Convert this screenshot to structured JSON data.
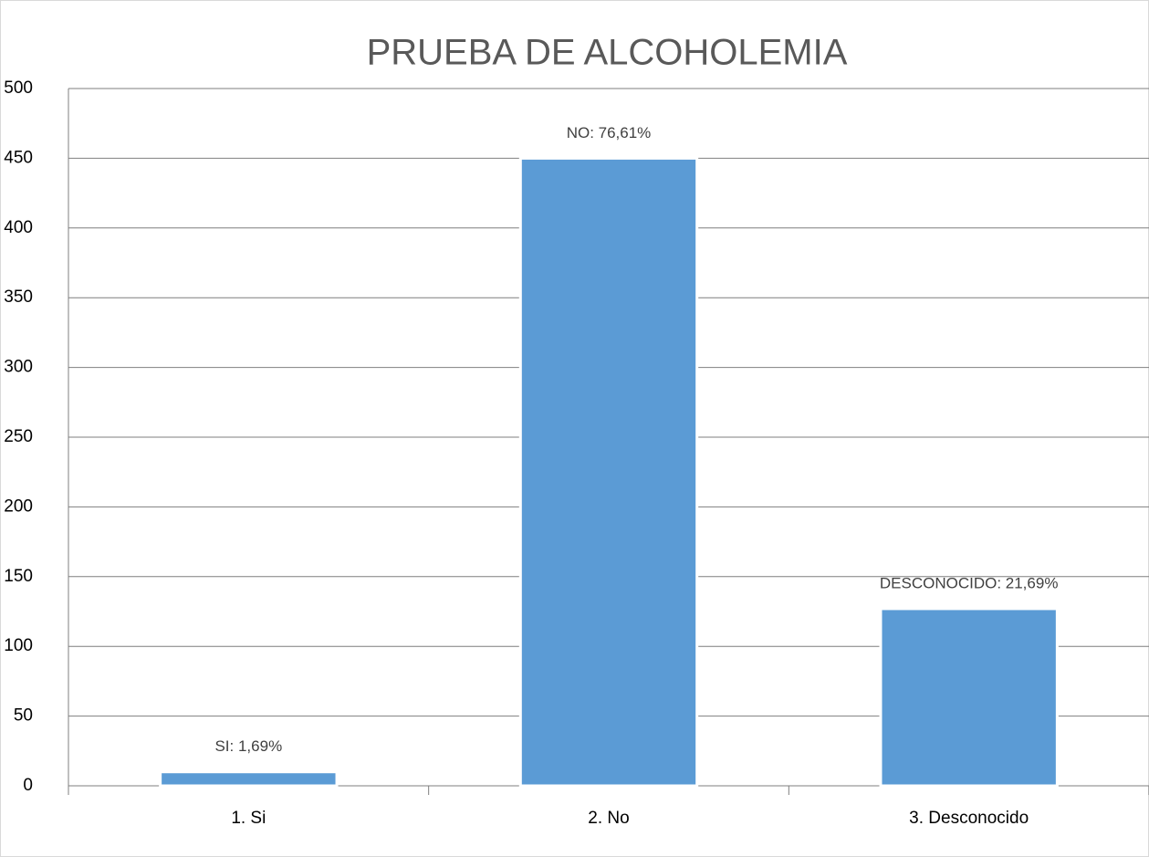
{
  "chart_data": {
    "type": "bar",
    "title": "PRUEBA DE ALCOHOLEMIA",
    "categories": [
      "1. Si",
      "2. No",
      "3. Desconocido"
    ],
    "values": [
      10,
      450,
      127
    ],
    "value_labels": [
      "SI: 1,69%",
      "NO: 76,61%",
      "DESCONOCIDO: 21,69%"
    ],
    "color": "#5b9bd5",
    "ylim": [
      0,
      500
    ],
    "yticks": [
      0,
      50,
      100,
      150,
      200,
      250,
      300,
      350,
      400,
      450,
      500
    ],
    "grid": true
  }
}
